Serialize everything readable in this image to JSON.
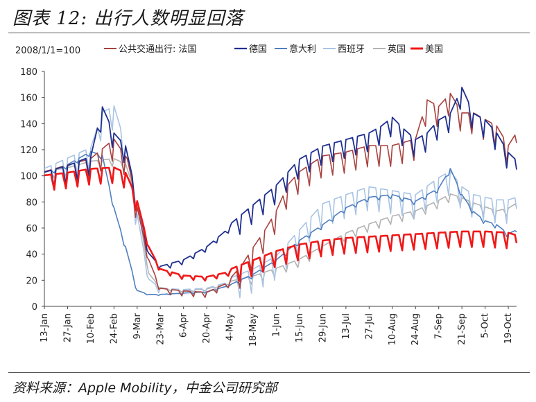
{
  "figure": {
    "title": "图表 12:  出行人数明显回落",
    "source": "资料来源：Apple Mobility，中金公司研究部"
  },
  "chart_data": {
    "type": "line",
    "index_note": "2008/1/1=100",
    "ylim": [
      0,
      180
    ],
    "yticks": [
      0,
      20,
      40,
      60,
      80,
      100,
      120,
      140,
      160,
      180
    ],
    "xlim": [
      0,
      285
    ],
    "xticks": [
      {
        "label": "13-Jan",
        "day": 0
      },
      {
        "label": "27-Jan",
        "day": 14
      },
      {
        "label": "10-Feb",
        "day": 28
      },
      {
        "label": "24-Feb",
        "day": 42
      },
      {
        "label": "9-Mar",
        "day": 56
      },
      {
        "label": "23-Mar",
        "day": 70
      },
      {
        "label": "6-Apr",
        "day": 84
      },
      {
        "label": "20-Apr",
        "day": 98
      },
      {
        "label": "4-May",
        "day": 112
      },
      {
        "label": "18-May",
        "day": 126
      },
      {
        "label": "1-Jun",
        "day": 140
      },
      {
        "label": "15-Jun",
        "day": 154
      },
      {
        "label": "29-Jun",
        "day": 168
      },
      {
        "label": "13-Jul",
        "day": 182
      },
      {
        "label": "27-Jul",
        "day": 196
      },
      {
        "label": "10-Aug",
        "day": 210
      },
      {
        "label": "24-Aug",
        "day": 224
      },
      {
        "label": "7-Sep",
        "day": 238
      },
      {
        "label": "21-Sep",
        "day": 252
      },
      {
        "label": "5-Oct",
        "day": 266
      },
      {
        "label": "19-Oct",
        "day": 280
      }
    ],
    "legend": [
      "公共交通出行: 法国",
      "德国",
      "意大利",
      "西班牙",
      "英国",
      "美国"
    ],
    "series": [
      {
        "name": "公共交通出行: 法国",
        "color": "#a9423f",
        "width": 1.6,
        "points": [
          [
            0,
            100
          ],
          [
            14,
            105
          ],
          [
            28,
            110
          ],
          [
            42,
            125
          ],
          [
            50,
            110
          ],
          [
            56,
            75
          ],
          [
            63,
            35
          ],
          [
            70,
            13
          ],
          [
            84,
            11
          ],
          [
            98,
            10
          ],
          [
            112,
            18
          ],
          [
            119,
            28
          ],
          [
            126,
            42
          ],
          [
            133,
            55
          ],
          [
            140,
            70
          ],
          [
            147,
            90
          ],
          [
            154,
            100
          ],
          [
            168,
            112
          ],
          [
            182,
            115
          ],
          [
            196,
            120
          ],
          [
            210,
            120
          ],
          [
            224,
            125
          ],
          [
            231,
            155
          ],
          [
            238,
            150
          ],
          [
            245,
            160
          ],
          [
            252,
            145
          ],
          [
            259,
            145
          ],
          [
            266,
            140
          ],
          [
            273,
            135
          ],
          [
            280,
            120
          ],
          [
            285,
            130
          ]
        ],
        "amp": 8,
        "weekly": true
      },
      {
        "name": "德国",
        "color": "#1f2f8f",
        "width": 1.8,
        "points": [
          [
            0,
            100
          ],
          [
            14,
            105
          ],
          [
            28,
            112
          ],
          [
            35,
            150
          ],
          [
            42,
            130
          ],
          [
            49,
            120
          ],
          [
            56,
            80
          ],
          [
            63,
            40
          ],
          [
            70,
            30
          ],
          [
            84,
            35
          ],
          [
            98,
            45
          ],
          [
            112,
            60
          ],
          [
            126,
            75
          ],
          [
            140,
            90
          ],
          [
            147,
            100
          ],
          [
            154,
            110
          ],
          [
            168,
            120
          ],
          [
            182,
            125
          ],
          [
            196,
            130
          ],
          [
            203,
            135
          ],
          [
            210,
            142
          ],
          [
            217,
            133
          ],
          [
            224,
            125
          ],
          [
            231,
            130
          ],
          [
            238,
            140
          ],
          [
            245,
            145
          ],
          [
            252,
            165
          ],
          [
            259,
            145
          ],
          [
            266,
            140
          ],
          [
            273,
            130
          ],
          [
            280,
            115
          ],
          [
            285,
            109
          ]
        ],
        "amp": 7,
        "weekly": true
      },
      {
        "name": "意大利",
        "color": "#4f7fbf",
        "width": 1.6,
        "points": [
          [
            0,
            102
          ],
          [
            14,
            108
          ],
          [
            28,
            118
          ],
          [
            35,
            115
          ],
          [
            42,
            75
          ],
          [
            49,
            45
          ],
          [
            56,
            12
          ],
          [
            63,
            9
          ],
          [
            70,
            9
          ],
          [
            84,
            10
          ],
          [
            98,
            11
          ],
          [
            112,
            16
          ],
          [
            126,
            24
          ],
          [
            140,
            35
          ],
          [
            154,
            50
          ],
          [
            168,
            62
          ],
          [
            182,
            75
          ],
          [
            196,
            83
          ],
          [
            210,
            85
          ],
          [
            224,
            80
          ],
          [
            238,
            90
          ],
          [
            245,
            105
          ],
          [
            252,
            85
          ],
          [
            259,
            72
          ],
          [
            266,
            65
          ],
          [
            273,
            62
          ],
          [
            280,
            55
          ],
          [
            285,
            58
          ]
        ],
        "amp": 1.5,
        "weekly": true
      },
      {
        "name": "西班牙",
        "color": "#a9c4e4",
        "width": 1.6,
        "points": [
          [
            0,
            102
          ],
          [
            14,
            110
          ],
          [
            28,
            118
          ],
          [
            35,
            145
          ],
          [
            42,
            150
          ],
          [
            49,
            120
          ],
          [
            56,
            70
          ],
          [
            63,
            20
          ],
          [
            70,
            13
          ],
          [
            84,
            12
          ],
          [
            98,
            13
          ],
          [
            112,
            18
          ],
          [
            126,
            25
          ],
          [
            140,
            35
          ],
          [
            154,
            55
          ],
          [
            168,
            75
          ],
          [
            182,
            82
          ],
          [
            196,
            88
          ],
          [
            210,
            85
          ],
          [
            224,
            82
          ],
          [
            238,
            95
          ],
          [
            245,
            100
          ],
          [
            252,
            88
          ],
          [
            259,
            82
          ],
          [
            266,
            80
          ],
          [
            273,
            78
          ],
          [
            280,
            78
          ],
          [
            285,
            80
          ]
        ],
        "amp": 9,
        "weekly": true
      },
      {
        "name": "英国",
        "color": "#b3b3b3",
        "width": 1.6,
        "points": [
          [
            0,
            102
          ],
          [
            14,
            105
          ],
          [
            28,
            110
          ],
          [
            42,
            112
          ],
          [
            49,
            108
          ],
          [
            56,
            80
          ],
          [
            63,
            25
          ],
          [
            70,
            14
          ],
          [
            84,
            12
          ],
          [
            98,
            13
          ],
          [
            112,
            18
          ],
          [
            126,
            22
          ],
          [
            140,
            28
          ],
          [
            154,
            35
          ],
          [
            168,
            45
          ],
          [
            182,
            55
          ],
          [
            196,
            62
          ],
          [
            210,
            68
          ],
          [
            224,
            72
          ],
          [
            238,
            80
          ],
          [
            245,
            85
          ],
          [
            252,
            82
          ],
          [
            259,
            78
          ],
          [
            266,
            75
          ],
          [
            273,
            72
          ],
          [
            280,
            74
          ],
          [
            285,
            78
          ]
        ],
        "amp": 3,
        "weekly": true
      },
      {
        "name": "美国",
        "color": "#f01818",
        "width": 2.6,
        "points": [
          [
            0,
            98
          ],
          [
            14,
            100
          ],
          [
            28,
            103
          ],
          [
            42,
            104
          ],
          [
            49,
            100
          ],
          [
            56,
            80
          ],
          [
            63,
            45
          ],
          [
            70,
            28
          ],
          [
            84,
            23
          ],
          [
            98,
            22
          ],
          [
            112,
            26
          ],
          [
            126,
            33
          ],
          [
            140,
            40
          ],
          [
            154,
            45
          ],
          [
            168,
            48
          ],
          [
            182,
            50
          ],
          [
            196,
            51
          ],
          [
            210,
            52
          ],
          [
            224,
            53
          ],
          [
            238,
            54
          ],
          [
            252,
            55
          ],
          [
            266,
            55
          ],
          [
            280,
            54
          ],
          [
            285,
            52
          ]
        ],
        "amp": 6,
        "weekly": true
      }
    ]
  }
}
